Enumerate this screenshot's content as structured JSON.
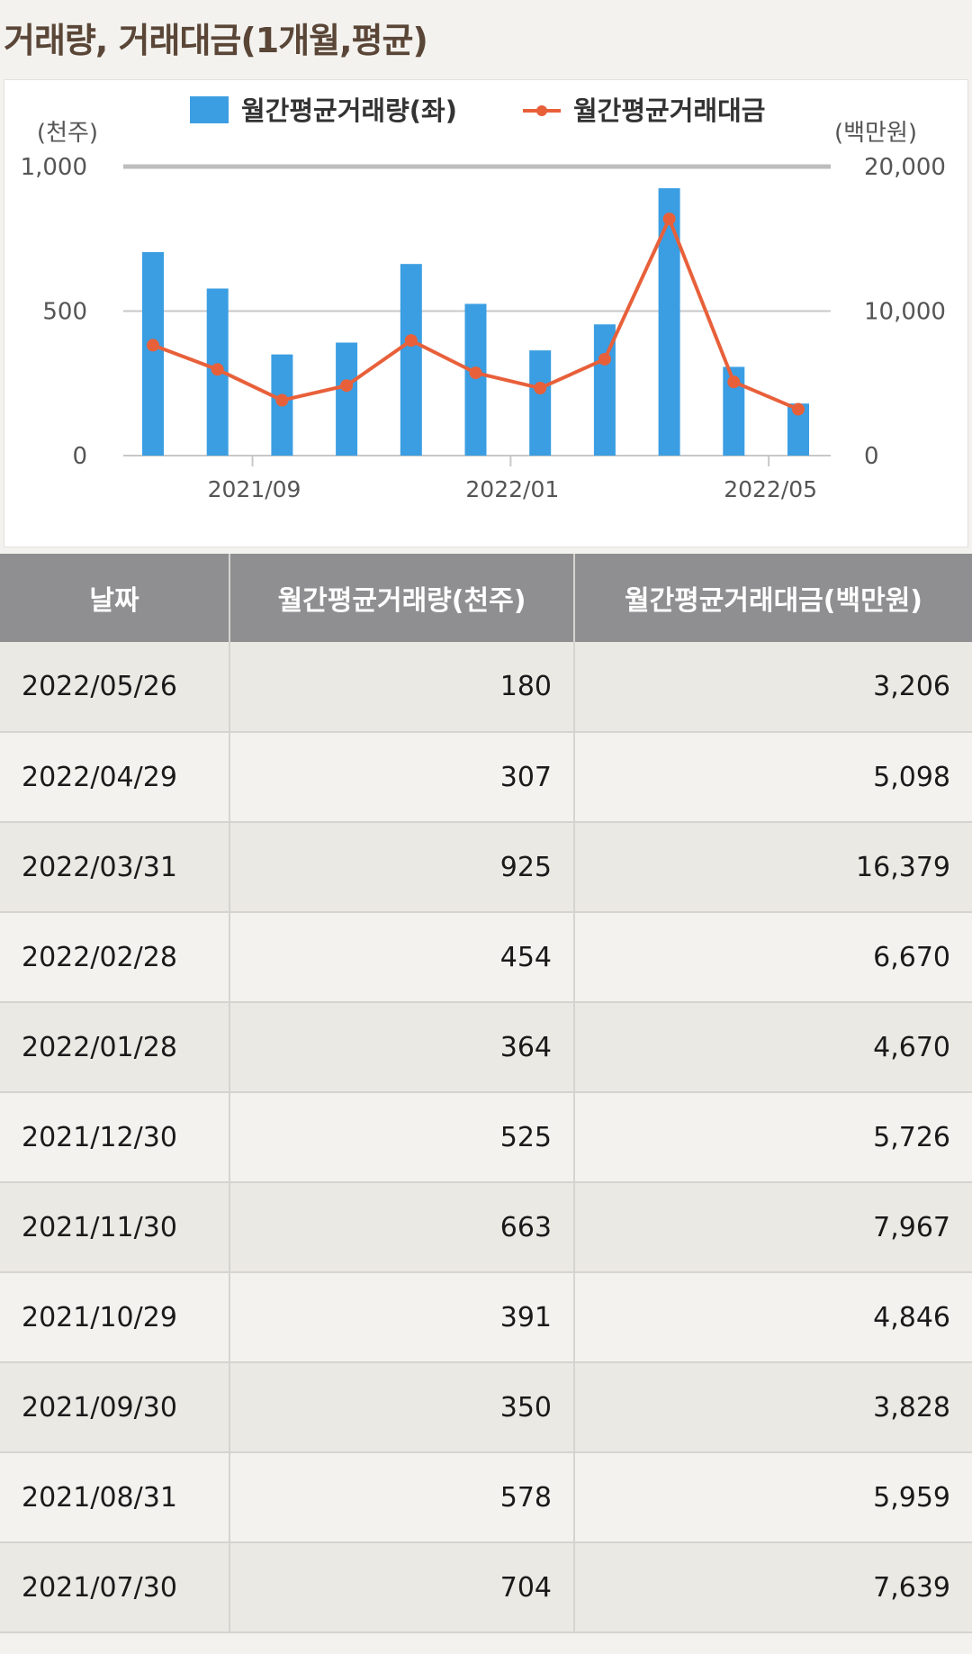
{
  "title": "거래량, 거래대금(1개월,평균)",
  "chart_data": {
    "type": "bar",
    "categories": [
      "2021/07",
      "2021/08",
      "2021/09",
      "2021/10",
      "2021/11",
      "2021/12",
      "2022/01",
      "2022/02",
      "2022/03",
      "2022/04",
      "2022/05"
    ],
    "x_tick_labels": [
      "2021/09",
      "2022/01",
      "2022/05"
    ],
    "series": [
      {
        "name": "월간평균거래량(좌)",
        "type": "bar",
        "axis": "left",
        "color": "#3b9ee2",
        "values": [
          704,
          578,
          350,
          391,
          663,
          525,
          364,
          454,
          925,
          307,
          180
        ]
      },
      {
        "name": "월간평균거래대금",
        "type": "line",
        "axis": "right",
        "color": "#e8603a",
        "values": [
          7639,
          5959,
          3828,
          4846,
          7967,
          5726,
          4670,
          6670,
          16379,
          5098,
          3206
        ]
      }
    ],
    "y_left": {
      "unit_label": "(천주)",
      "ylim": [
        0,
        1000
      ],
      "ticks": [
        "0",
        "500",
        "1,000"
      ],
      "tick_values": [
        0,
        500,
        1000
      ]
    },
    "y_right": {
      "unit_label": "(백만원)",
      "ylim": [
        0,
        20000
      ],
      "ticks": [
        "0",
        "10,000",
        "20,000"
      ],
      "tick_values": [
        0,
        10000,
        20000
      ]
    },
    "grid": true,
    "legend_position": "top"
  },
  "table": {
    "headers": [
      "날짜",
      "월간평균거래량(천주)",
      "월간평균거래대금(백만원)"
    ],
    "rows": [
      [
        "2022/05/26",
        "180",
        "3,206"
      ],
      [
        "2022/04/29",
        "307",
        "5,098"
      ],
      [
        "2022/03/31",
        "925",
        "16,379"
      ],
      [
        "2022/02/28",
        "454",
        "6,670"
      ],
      [
        "2022/01/28",
        "364",
        "4,670"
      ],
      [
        "2021/12/30",
        "525",
        "5,726"
      ],
      [
        "2021/11/30",
        "663",
        "7,967"
      ],
      [
        "2021/10/29",
        "391",
        "4,846"
      ],
      [
        "2021/09/30",
        "350",
        "3,828"
      ],
      [
        "2021/08/31",
        "578",
        "5,959"
      ],
      [
        "2021/07/30",
        "704",
        "7,639"
      ]
    ]
  }
}
